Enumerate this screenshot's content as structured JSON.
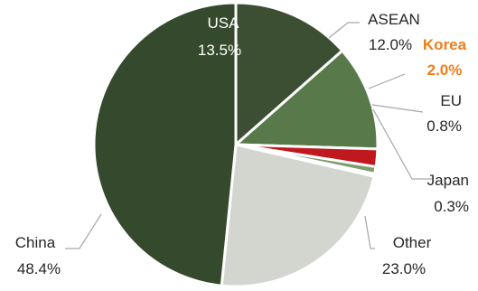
{
  "chart_data": {
    "type": "pie",
    "categories": [
      "USA",
      "ASEAN",
      "Korea",
      "EU",
      "Japan",
      "Other",
      "China"
    ],
    "values": [
      13.5,
      12.0,
      2.0,
      0.8,
      0.3,
      23.0,
      48.4
    ],
    "value_labels": [
      "13.5%",
      "12.0%",
      "2.0%",
      "0.8%",
      "0.3%",
      "23.0%",
      "48.4%"
    ],
    "colors": [
      "#3c4f33",
      "#587a4a",
      "#c0181f",
      "#7f9c6e",
      "#9fb08e",
      "#d3d5cf",
      "#354a2c"
    ],
    "label_colors": {
      "default": "#262626",
      "highlight": "#f07d1a",
      "inside": "#ffffff"
    },
    "highlight": "Korea",
    "legend": "none",
    "start": "12 o'clock",
    "direction": "clockwise"
  }
}
